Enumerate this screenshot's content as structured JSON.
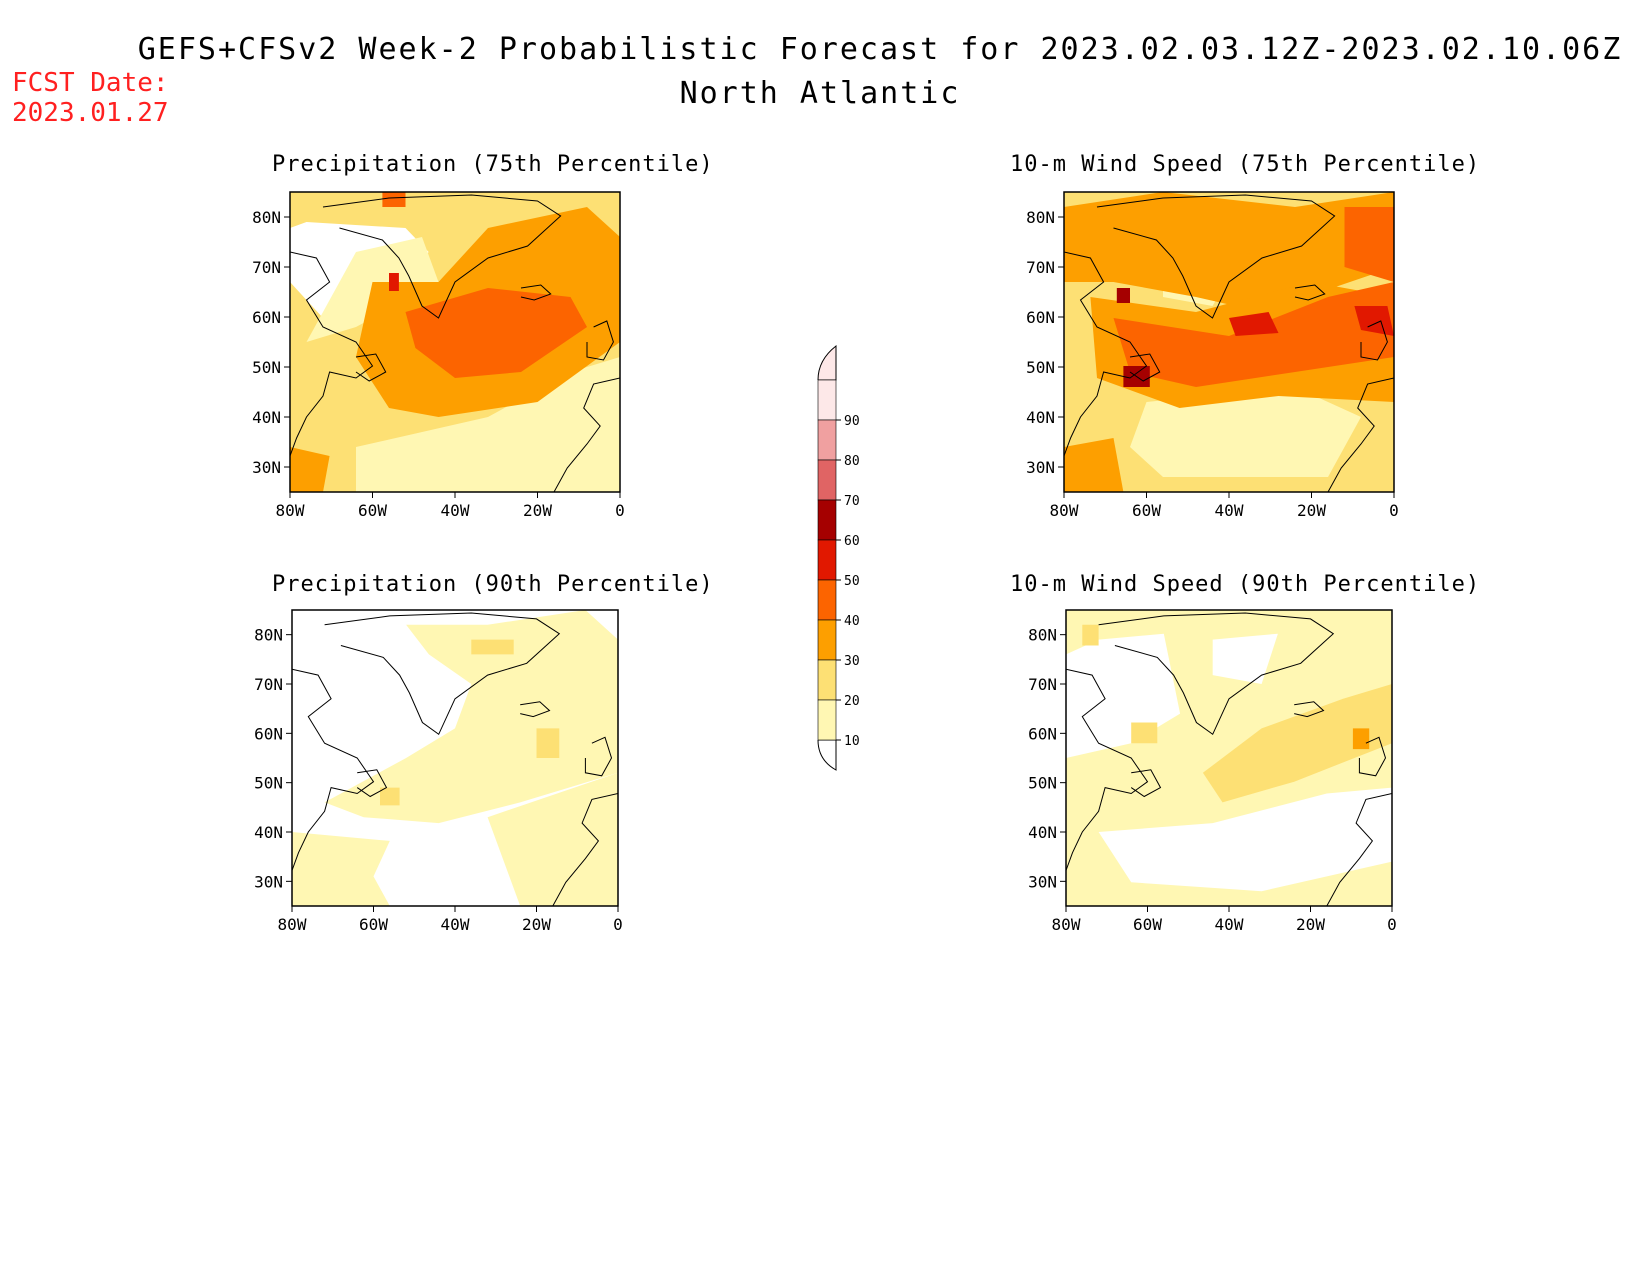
{
  "title": "GEFS+CFSv2 Week-2 Probabilistic Forecast for 2023.02.03.12Z-2023.02.10.06Z",
  "region": "North Atlantic",
  "fcst_date_label": "FCST Date:",
  "fcst_date": "2023.01.27",
  "colors": {
    "date_text": "#ff2020",
    "levels": [
      "#ffffff",
      "#fff7b3",
      "#fde074",
      "#fd9f00",
      "#fc6400",
      "#e11800",
      "#a50000",
      "#e06464",
      "#f0a0a0",
      "#fde8e8"
    ]
  },
  "colorbar": {
    "labels": [
      "10",
      "20",
      "30",
      "40",
      "50",
      "60",
      "70",
      "80",
      "90"
    ]
  },
  "axes": {
    "lat_ticks": [
      "80N",
      "70N",
      "60N",
      "50N",
      "40N",
      "30N"
    ],
    "lon_ticks": [
      "80W",
      "60W",
      "40W",
      "20W",
      "0"
    ]
  },
  "panels": [
    {
      "id": "precip-75",
      "title": "Precipitation (75th Percentile)"
    },
    {
      "id": "wind-75",
      "title": "10-m Wind Speed (75th Percentile)"
    },
    {
      "id": "precip-90",
      "title": "Precipitation (90th Percentile)"
    },
    {
      "id": "wind-90",
      "title": "10-m Wind Speed (90th Percentile)"
    }
  ]
}
